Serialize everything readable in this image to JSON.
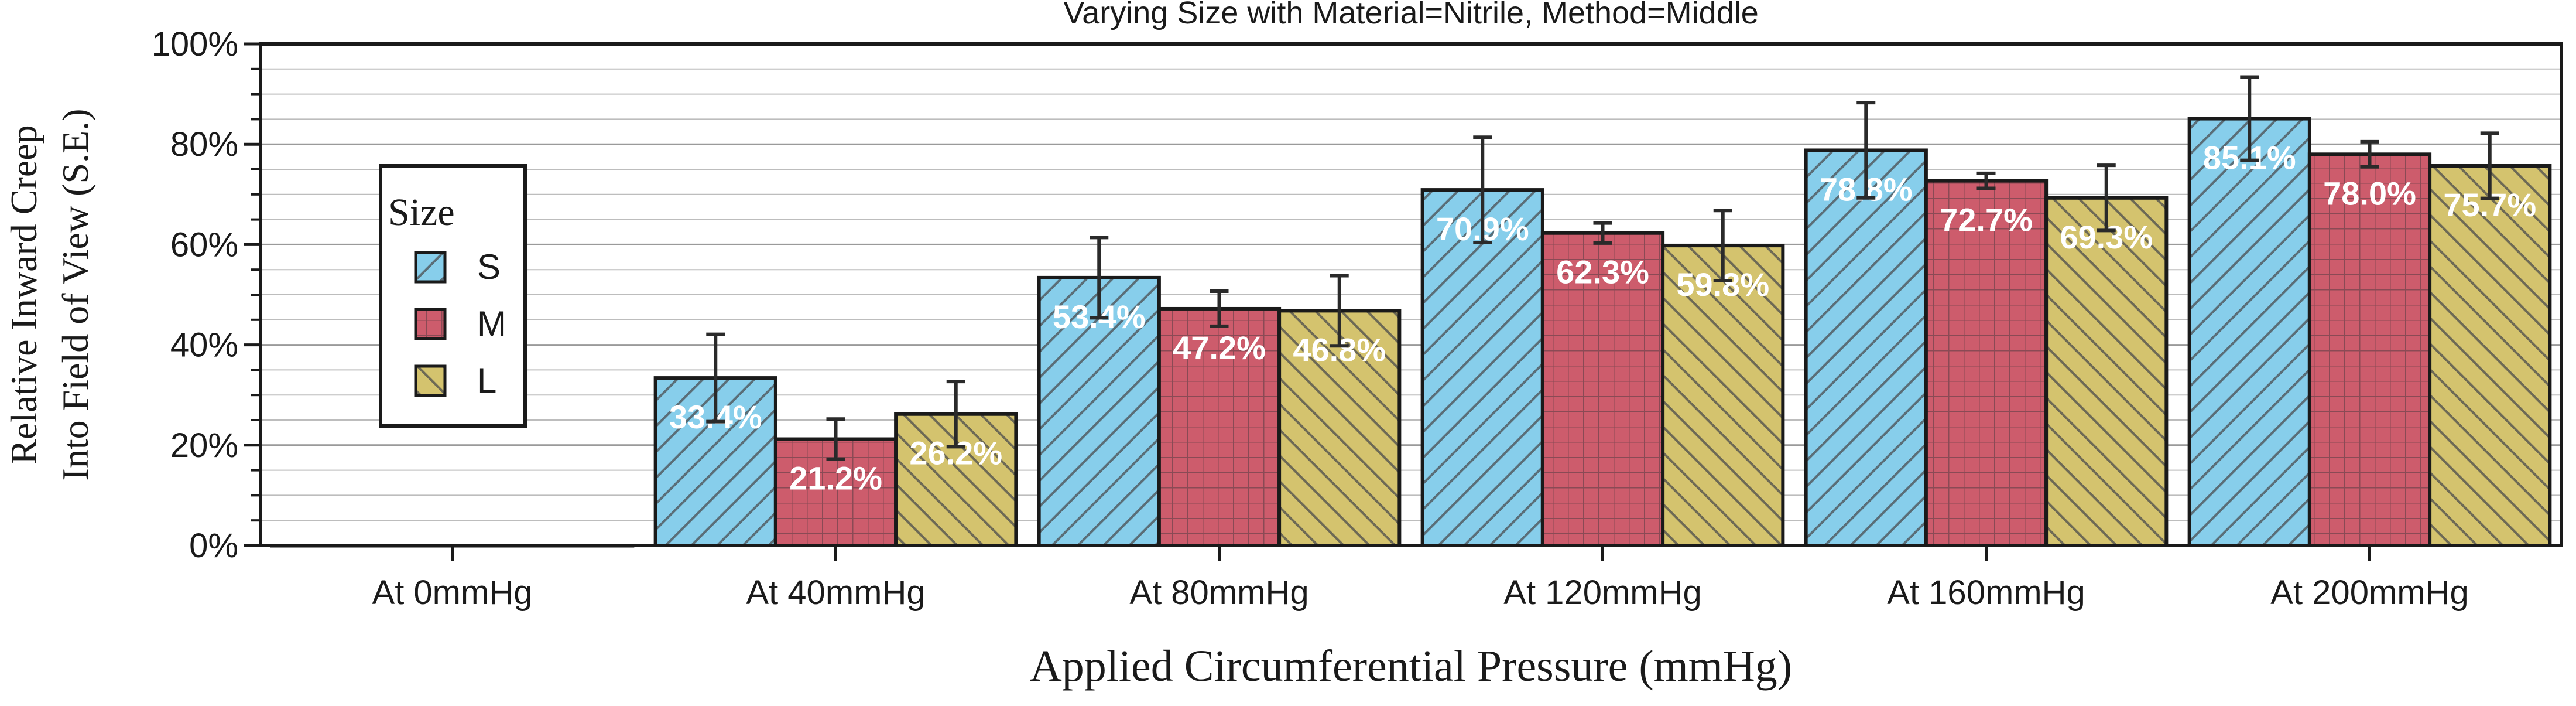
{
  "chart_data": {
    "type": "bar",
    "title": "Varying Size with Material=Nitrile, Method=Middle",
    "xlabel": "Applied Circumferential Pressure (mmHg)",
    "ylabel_lines": [
      "Relative Inward Creep",
      "Into Field of View (S.E.)"
    ],
    "categories": [
      "At 0mmHg",
      "At 40mmHg",
      "At 80mmHg",
      "At 120mmHg",
      "At 160mmHg",
      "At 200mmHg"
    ],
    "ylim": [
      0,
      100
    ],
    "y_ticks": [
      "0%",
      "20%",
      "40%",
      "60%",
      "80%",
      "100%"
    ],
    "grid": true,
    "legend": {
      "title": "Size",
      "position": "left",
      "entries": [
        "S",
        "M",
        "L"
      ]
    },
    "series": [
      {
        "name": "S",
        "color": "#87ceeb",
        "pattern": "diagonal-hatch",
        "values": [
          0,
          33.4,
          53.4,
          70.9,
          78.8,
          85.1
        ],
        "labels": [
          "",
          "33.4%",
          "53.4%",
          "70.9%",
          "78.8%",
          "85.1%"
        ],
        "error": [
          0,
          8.7,
          8.0,
          10.5,
          9.5,
          8.3
        ]
      },
      {
        "name": "M",
        "color": "#cd5c6c",
        "pattern": "grid-hatch",
        "values": [
          0,
          21.2,
          47.2,
          62.3,
          72.7,
          78.0
        ],
        "labels": [
          "",
          "21.2%",
          "47.2%",
          "62.3%",
          "72.7%",
          "78.0%"
        ],
        "error": [
          0,
          4.0,
          3.5,
          2.0,
          1.5,
          2.5
        ]
      },
      {
        "name": "L",
        "color": "#d4c36e",
        "pattern": "back-diagonal-hatch",
        "values": [
          0,
          26.2,
          46.8,
          59.8,
          69.3,
          75.7
        ],
        "labels": [
          "",
          "26.2%",
          "46.8%",
          "59.8%",
          "69.3%",
          "75.7%"
        ],
        "error": [
          0,
          6.5,
          7.0,
          7.0,
          6.5,
          6.5
        ]
      }
    ]
  }
}
